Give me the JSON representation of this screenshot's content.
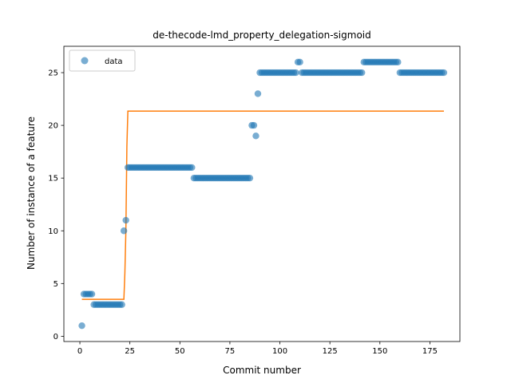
{
  "chart_data": {
    "type": "scatter",
    "title": "de-thecode-lmd_property_delegation-sigmoid",
    "xlabel": "Commit number",
    "ylabel": "Number of instance of a feature",
    "xlim": [
      -8,
      190
    ],
    "ylim": [
      -0.5,
      27.5
    ],
    "xticks": [
      0,
      25,
      50,
      75,
      100,
      125,
      150,
      175
    ],
    "yticks": [
      0,
      5,
      10,
      15,
      20,
      25
    ],
    "grid": false,
    "legend": {
      "position": "top-left",
      "entries": [
        "data"
      ]
    },
    "colors": {
      "data": "#1f77b4",
      "fit": "#ff7f0e"
    },
    "series": [
      {
        "name": "data",
        "kind": "scatter",
        "points": [
          [
            1,
            1
          ],
          [
            2,
            4
          ],
          [
            3,
            4
          ],
          [
            4,
            4
          ],
          [
            5,
            4
          ],
          [
            6,
            4
          ],
          [
            7,
            3
          ],
          [
            8,
            3
          ],
          [
            9,
            3
          ],
          [
            10,
            3
          ],
          [
            11,
            3
          ],
          [
            12,
            3
          ],
          [
            13,
            3
          ],
          [
            14,
            3
          ],
          [
            15,
            3
          ],
          [
            16,
            3
          ],
          [
            17,
            3
          ],
          [
            18,
            3
          ],
          [
            19,
            3
          ],
          [
            20,
            3
          ],
          [
            21,
            3
          ],
          [
            22,
            10
          ],
          [
            23,
            11
          ],
          [
            24,
            16
          ],
          [
            25,
            16
          ],
          [
            26,
            16
          ],
          [
            27,
            16
          ],
          [
            28,
            16
          ],
          [
            29,
            16
          ],
          [
            30,
            16
          ],
          [
            31,
            16
          ],
          [
            32,
            16
          ],
          [
            33,
            16
          ],
          [
            34,
            16
          ],
          [
            35,
            16
          ],
          [
            36,
            16
          ],
          [
            37,
            16
          ],
          [
            38,
            16
          ],
          [
            39,
            16
          ],
          [
            40,
            16
          ],
          [
            41,
            16
          ],
          [
            42,
            16
          ],
          [
            43,
            16
          ],
          [
            44,
            16
          ],
          [
            45,
            16
          ],
          [
            46,
            16
          ],
          [
            47,
            16
          ],
          [
            48,
            16
          ],
          [
            49,
            16
          ],
          [
            50,
            16
          ],
          [
            51,
            16
          ],
          [
            52,
            16
          ],
          [
            53,
            16
          ],
          [
            54,
            16
          ],
          [
            55,
            16
          ],
          [
            56,
            16
          ],
          [
            57,
            15
          ],
          [
            58,
            15
          ],
          [
            59,
            15
          ],
          [
            60,
            15
          ],
          [
            61,
            15
          ],
          [
            62,
            15
          ],
          [
            63,
            15
          ],
          [
            64,
            15
          ],
          [
            65,
            15
          ],
          [
            66,
            15
          ],
          [
            67,
            15
          ],
          [
            68,
            15
          ],
          [
            69,
            15
          ],
          [
            70,
            15
          ],
          [
            71,
            15
          ],
          [
            72,
            15
          ],
          [
            73,
            15
          ],
          [
            74,
            15
          ],
          [
            75,
            15
          ],
          [
            76,
            15
          ],
          [
            77,
            15
          ],
          [
            78,
            15
          ],
          [
            79,
            15
          ],
          [
            80,
            15
          ],
          [
            81,
            15
          ],
          [
            82,
            15
          ],
          [
            83,
            15
          ],
          [
            84,
            15
          ],
          [
            85,
            15
          ],
          [
            86,
            20
          ],
          [
            87,
            20
          ],
          [
            88,
            19
          ],
          [
            89,
            23
          ],
          [
            90,
            25
          ],
          [
            91,
            25
          ],
          [
            92,
            25
          ],
          [
            93,
            25
          ],
          [
            94,
            25
          ],
          [
            95,
            25
          ],
          [
            96,
            25
          ],
          [
            97,
            25
          ],
          [
            98,
            25
          ],
          [
            99,
            25
          ],
          [
            100,
            25
          ],
          [
            101,
            25
          ],
          [
            102,
            25
          ],
          [
            103,
            25
          ],
          [
            104,
            25
          ],
          [
            105,
            25
          ],
          [
            106,
            25
          ],
          [
            107,
            25
          ],
          [
            108,
            25
          ],
          [
            109,
            26
          ],
          [
            110,
            26
          ],
          [
            111,
            25
          ],
          [
            112,
            25
          ],
          [
            113,
            25
          ],
          [
            114,
            25
          ],
          [
            115,
            25
          ],
          [
            116,
            25
          ],
          [
            117,
            25
          ],
          [
            118,
            25
          ],
          [
            119,
            25
          ],
          [
            120,
            25
          ],
          [
            121,
            25
          ],
          [
            122,
            25
          ],
          [
            123,
            25
          ],
          [
            124,
            25
          ],
          [
            125,
            25
          ],
          [
            126,
            25
          ],
          [
            127,
            25
          ],
          [
            128,
            25
          ],
          [
            129,
            25
          ],
          [
            130,
            25
          ],
          [
            131,
            25
          ],
          [
            132,
            25
          ],
          [
            133,
            25
          ],
          [
            134,
            25
          ],
          [
            135,
            25
          ],
          [
            136,
            25
          ],
          [
            137,
            25
          ],
          [
            138,
            25
          ],
          [
            139,
            25
          ],
          [
            140,
            25
          ],
          [
            141,
            25
          ],
          [
            142,
            26
          ],
          [
            143,
            26
          ],
          [
            144,
            26
          ],
          [
            145,
            26
          ],
          [
            146,
            26
          ],
          [
            147,
            26
          ],
          [
            148,
            26
          ],
          [
            149,
            26
          ],
          [
            150,
            26
          ],
          [
            151,
            26
          ],
          [
            152,
            26
          ],
          [
            153,
            26
          ],
          [
            154,
            26
          ],
          [
            155,
            26
          ],
          [
            156,
            26
          ],
          [
            157,
            26
          ],
          [
            158,
            26
          ],
          [
            159,
            26
          ],
          [
            160,
            25
          ],
          [
            161,
            25
          ],
          [
            162,
            25
          ],
          [
            163,
            25
          ],
          [
            164,
            25
          ],
          [
            165,
            25
          ],
          [
            166,
            25
          ],
          [
            167,
            25
          ],
          [
            168,
            25
          ],
          [
            169,
            25
          ],
          [
            170,
            25
          ],
          [
            171,
            25
          ],
          [
            172,
            25
          ],
          [
            173,
            25
          ],
          [
            174,
            25
          ],
          [
            175,
            25
          ],
          [
            176,
            25
          ],
          [
            177,
            25
          ],
          [
            178,
            25
          ],
          [
            179,
            25
          ],
          [
            180,
            25
          ],
          [
            181,
            25
          ],
          [
            182,
            25
          ]
        ]
      },
      {
        "name": "",
        "kind": "line",
        "points": [
          [
            1,
            3.5
          ],
          [
            22,
            3.5
          ],
          [
            22.5,
            6
          ],
          [
            23,
            10
          ],
          [
            23.5,
            18
          ],
          [
            24,
            21.35
          ],
          [
            182,
            21.35
          ]
        ]
      }
    ]
  }
}
